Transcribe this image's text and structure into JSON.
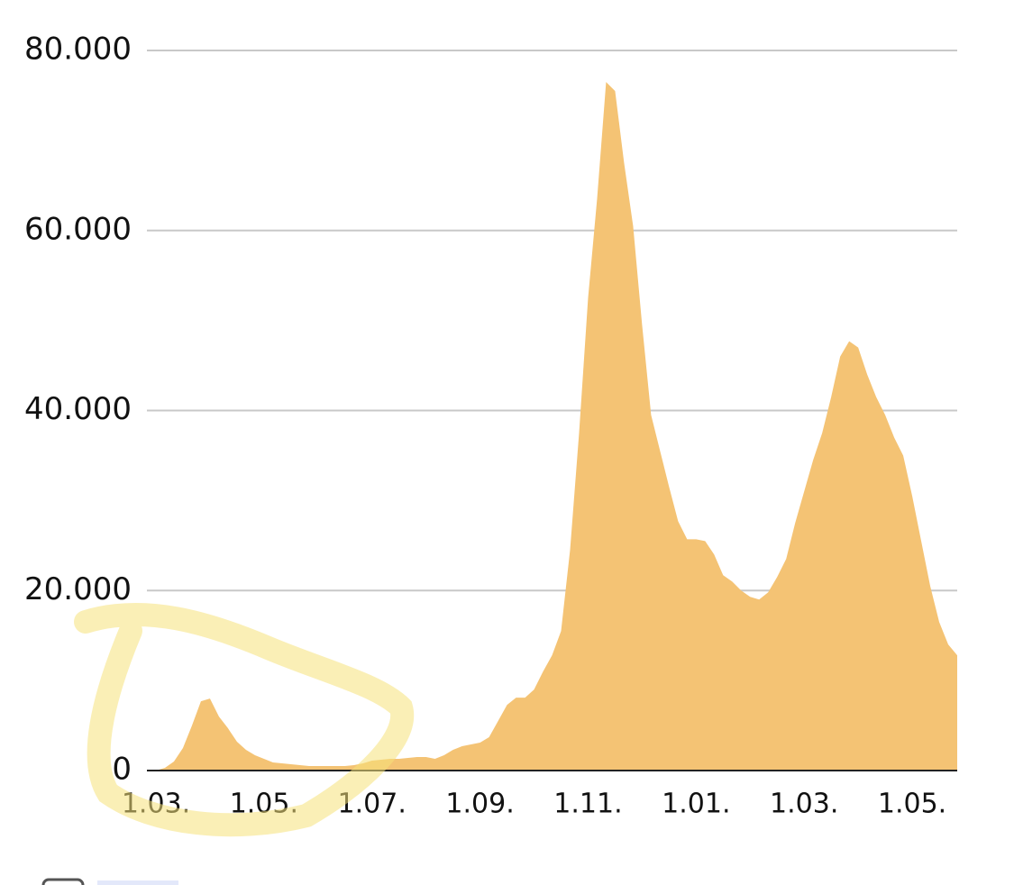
{
  "chart_data": {
    "type": "area",
    "categories": [
      "1.03.",
      null,
      null,
      null,
      null,
      null,
      null,
      null,
      null,
      null,
      null,
      null,
      "1.05.",
      null,
      null,
      null,
      null,
      null,
      null,
      null,
      null,
      null,
      null,
      null,
      "1.07.",
      null,
      null,
      null,
      null,
      null,
      null,
      null,
      null,
      null,
      null,
      null,
      "1.09.",
      null,
      null,
      null,
      null,
      null,
      null,
      null,
      null,
      null,
      null,
      null,
      "1.11.",
      null,
      null,
      null,
      null,
      null,
      null,
      null,
      null,
      null,
      null,
      null,
      "1.01.",
      null,
      null,
      null,
      null,
      null,
      null,
      null,
      null,
      null,
      null,
      null,
      "1.03.",
      null,
      null,
      null,
      null,
      null,
      null,
      null,
      null,
      null,
      null,
      null,
      "1.05.",
      null,
      null,
      null,
      null,
      null
    ],
    "values": [
      0,
      300,
      1000,
      2500,
      5000,
      7700,
      8000,
      6000,
      4700,
      3200,
      2300,
      1700,
      1300,
      900,
      800,
      700,
      600,
      500,
      500,
      500,
      500,
      500,
      600,
      800,
      1100,
      1200,
      1300,
      1300,
      1400,
      1500,
      1500,
      1300,
      1700,
      2300,
      2700,
      2900,
      3100,
      3700,
      5500,
      7300,
      8100,
      8100,
      9000,
      11000,
      12800,
      15500,
      24500,
      37500,
      52500,
      63500,
      76500,
      75500,
      67500,
      60500,
      49500,
      39500,
      35500,
      31500,
      27700,
      25700,
      25700,
      25500,
      24000,
      21700,
      21000,
      20000,
      19300,
      19000,
      19800,
      21500,
      23500,
      27500,
      31000,
      34500,
      37500,
      41500,
      46000,
      47700,
      47000,
      44000,
      41500,
      39500,
      37000,
      35000,
      30500,
      25500,
      20500,
      16500,
      14000,
      12800
    ],
    "color": "#f4c374",
    "ylim": [
      0,
      80000
    ],
    "yticks": [
      0,
      {
        "value": 20000,
        "label": "20.000"
      },
      {
        "value": 40000,
        "label": "40.000"
      },
      {
        "value": 60000,
        "label": "60.000"
      },
      {
        "value": 80000,
        "label": "80.000"
      }
    ],
    "grid": true
  }
}
